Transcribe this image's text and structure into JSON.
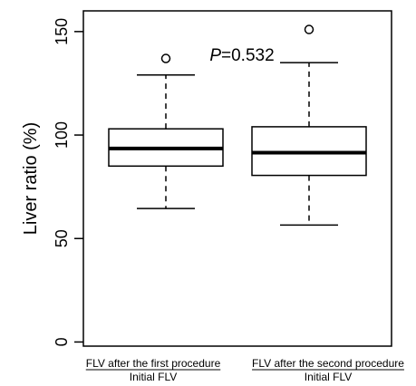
{
  "chart_data": {
    "type": "box",
    "ylabel": "Liver ratio (%)",
    "ylim": [
      -2,
      160
    ],
    "yticks": [
      0,
      50,
      100,
      150
    ],
    "annotation": {
      "prefix": "P",
      "text": "=0.532"
    },
    "grid": false,
    "legend": "none",
    "categories": [
      {
        "label_top": "FLV after the first procedure",
        "label_bottom": "Initial FLV"
      },
      {
        "label_top": "FLV after the second procedure",
        "label_bottom": "Initial FLV"
      }
    ],
    "series": [
      {
        "whisker_low": 64.5,
        "q1": 85,
        "median": 93.5,
        "q3": 103,
        "whisker_high": 129,
        "outliers": [
          137
        ]
      },
      {
        "whisker_low": 56.5,
        "q1": 80.5,
        "median": 91.5,
        "q3": 104,
        "whisker_high": 135,
        "outliers": [
          151
        ]
      }
    ]
  }
}
